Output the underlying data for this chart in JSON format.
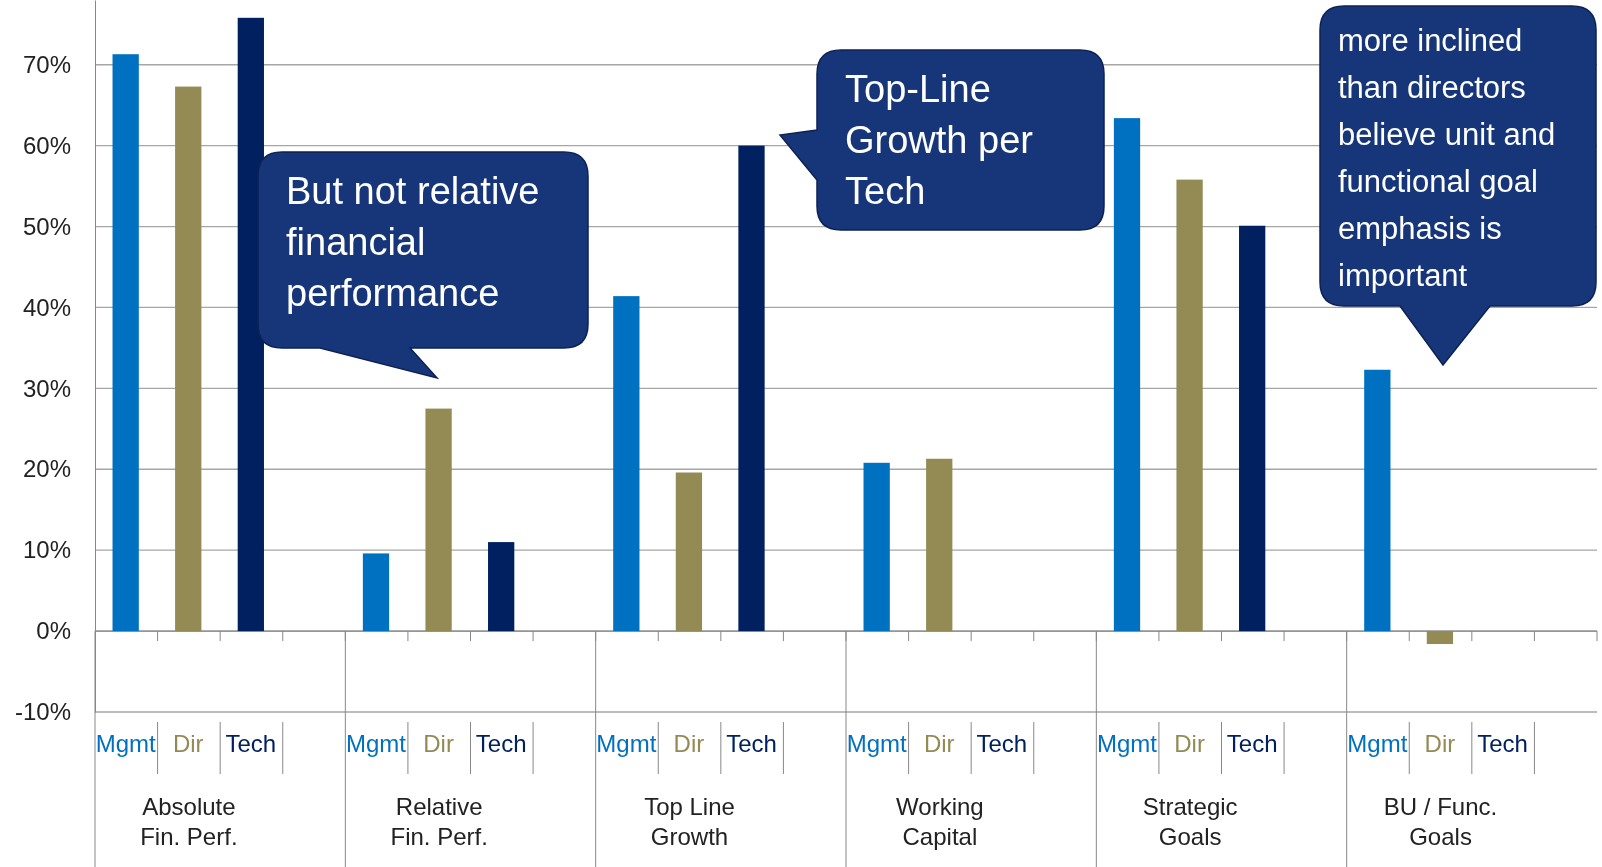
{
  "chart_data": {
    "type": "bar",
    "categories": [
      "Absolute\nFin. Perf.",
      "Relative\nFin. Perf.",
      "Top Line\nGrowth",
      "Working\nCapital",
      "Strategic\nGoals",
      "BU / Func.\nGoals"
    ],
    "series": [
      {
        "name": "Mgmt",
        "color": "#0070c0",
        "values": [
          71.3,
          9.6,
          41.4,
          20.8,
          63.4,
          32.3
        ]
      },
      {
        "name": "Dir",
        "color": "#948a54",
        "values": [
          67.3,
          27.5,
          19.6,
          21.3,
          55.8,
          -1.6
        ]
      },
      {
        "name": "Tech",
        "color": "#002060",
        "values": [
          75.8,
          11.0,
          60.0,
          null,
          50.1,
          null
        ]
      }
    ],
    "ylim": [
      -10,
      78
    ],
    "yticks": [
      {
        "value": -10,
        "label": "-10%"
      },
      {
        "value": 0,
        "label": "0%"
      },
      {
        "value": 10,
        "label": "10%"
      },
      {
        "value": 20,
        "label": "20%"
      },
      {
        "value": 30,
        "label": "30%"
      },
      {
        "value": 40,
        "label": "40%"
      },
      {
        "value": 50,
        "label": "50%"
      },
      {
        "value": 60,
        "label": "60%"
      },
      {
        "value": 70,
        "label": "70%"
      }
    ],
    "grid": "y",
    "annotations": [
      "But not relative\nfinancial\nperformance",
      "Top-Line\nGrowth per\nTech",
      "more inclined\nthan directors\nbelieve unit and\nfunctional goal\nemphasis is\nimportant"
    ]
  }
}
